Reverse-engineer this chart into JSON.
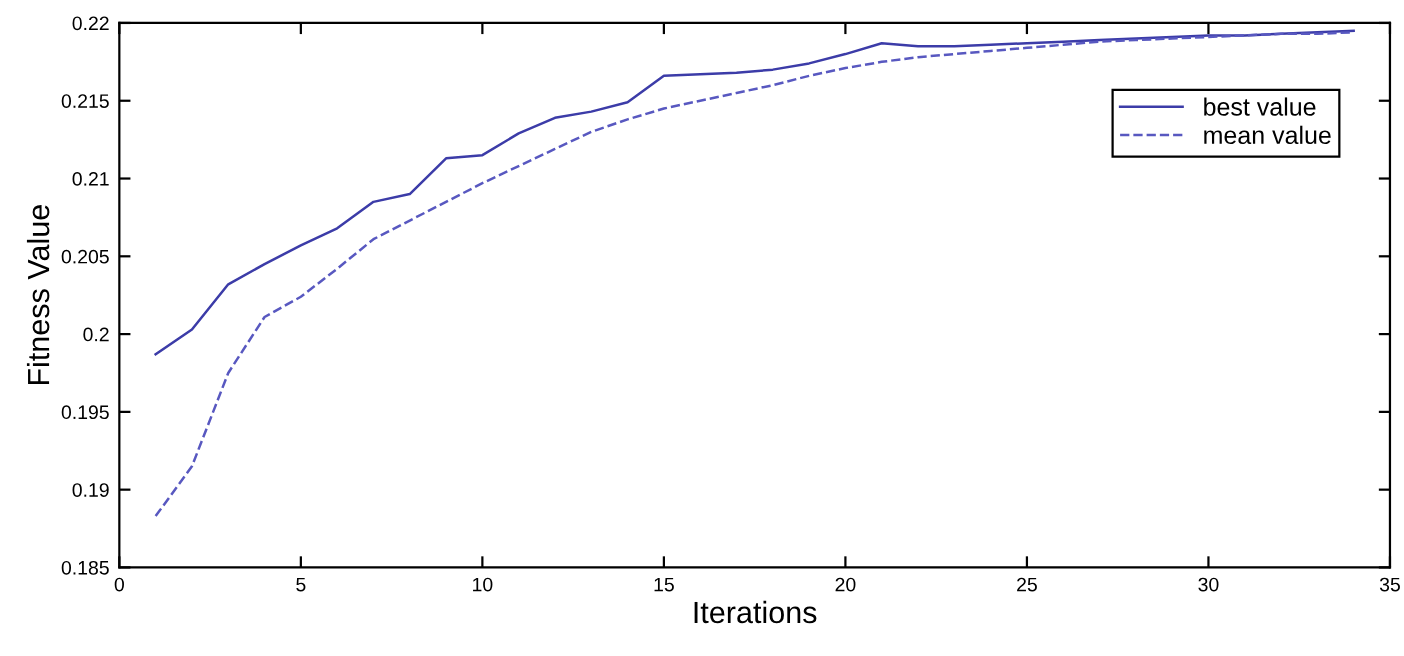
{
  "chart_data": {
    "type": "line",
    "xlabel": "Iterations",
    "ylabel": "Fitness Value",
    "x": [
      1,
      2,
      3,
      4,
      5,
      6,
      7,
      8,
      9,
      10,
      11,
      12,
      13,
      14,
      15,
      16,
      17,
      18,
      19,
      20,
      21,
      22,
      23,
      24,
      25,
      26,
      27,
      28,
      29,
      30,
      31,
      32,
      33,
      34
    ],
    "series": [
      {
        "name": "best value",
        "color": "#3c3ca8",
        "line_style": "solid",
        "values": [
          0.1987,
          0.2003,
          0.2032,
          0.2045,
          0.2057,
          0.2068,
          0.2085,
          0.209,
          0.2113,
          0.2115,
          0.2129,
          0.2139,
          0.2143,
          0.2149,
          0.2166,
          0.2167,
          0.2168,
          0.217,
          0.2174,
          0.218,
          0.2187,
          0.2185,
          0.2185,
          0.2186,
          0.2187,
          0.2188,
          0.2189,
          0.219,
          0.2191,
          0.2192,
          0.2192,
          0.2193,
          0.2194,
          0.2195
        ]
      },
      {
        "name": "mean value",
        "color": "#5858c0",
        "line_style": "dashed",
        "values": [
          0.1883,
          0.1915,
          0.1975,
          0.2011,
          0.2024,
          0.2042,
          0.2061,
          0.2073,
          0.2085,
          0.2097,
          0.2108,
          0.2119,
          0.213,
          0.2138,
          0.2145,
          0.215,
          0.2155,
          0.216,
          0.2166,
          0.2171,
          0.2175,
          0.2178,
          0.218,
          0.2182,
          0.2184,
          0.2186,
          0.2188,
          0.2189,
          0.219,
          0.2191,
          0.2192,
          0.2193,
          0.2193,
          0.2194
        ]
      }
    ],
    "xlim": [
      0,
      35
    ],
    "xticks": [
      0,
      5,
      10,
      15,
      20,
      25,
      30,
      35
    ],
    "ylim": [
      0.185,
      0.22
    ],
    "yticks": [
      0.185,
      0.19,
      0.195,
      0.2,
      0.205,
      0.21,
      0.215,
      0.22
    ],
    "legend": "top right",
    "grid": false,
    "marker": "none"
  }
}
